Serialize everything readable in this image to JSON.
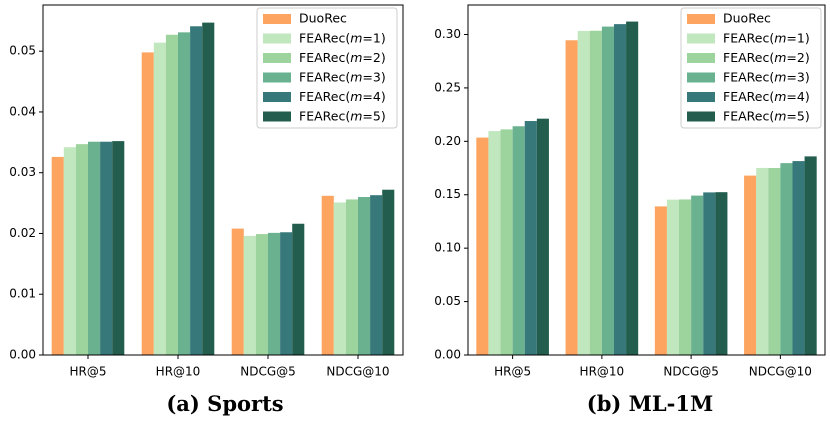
{
  "chart_data": [
    {
      "type": "bar",
      "title": "(a) Sports",
      "xlabel": "",
      "ylabel": "",
      "categories": [
        "HR@5",
        "HR@10",
        "NDCG@5",
        "NDCG@10"
      ],
      "ylim": [
        0,
        0.0576
      ],
      "yticks": [
        "0.00",
        "0.01",
        "0.02",
        "0.03",
        "0.04",
        "0.05"
      ],
      "ytick_values": [
        0,
        0.01,
        0.02,
        0.03,
        0.04,
        0.05
      ],
      "legend_position": "top-right",
      "series": [
        {
          "name": "DuoRec",
          "color": "#fca460",
          "values": [
            0.0326,
            0.0498,
            0.0208,
            0.0262
          ]
        },
        {
          "name": "FEARec(m=1)",
          "color": "#c0e7be",
          "values": [
            0.0342,
            0.0514,
            0.0196,
            0.0251
          ]
        },
        {
          "name": "FEARec(m=2)",
          "color": "#9dd39c",
          "values": [
            0.0347,
            0.0527,
            0.0199,
            0.0256
          ]
        },
        {
          "name": "FEARec(m=3)",
          "color": "#6ab190",
          "values": [
            0.0351,
            0.0531,
            0.0201,
            0.026
          ]
        },
        {
          "name": "FEARec(m=4)",
          "color": "#37797a",
          "values": [
            0.0351,
            0.0541,
            0.0202,
            0.0263
          ]
        },
        {
          "name": "FEARec(m=5)",
          "color": "#225d4e",
          "values": [
            0.0352,
            0.0547,
            0.0216,
            0.0272
          ]
        }
      ]
    },
    {
      "type": "bar",
      "title": "(b) ML-1M",
      "xlabel": "",
      "ylabel": "",
      "categories": [
        "HR@5",
        "HR@10",
        "NDCG@5",
        "NDCG@10"
      ],
      "ylim": [
        0,
        0.3276
      ],
      "yticks": [
        "0.00",
        "0.05",
        "0.10",
        "0.15",
        "0.20",
        "0.25",
        "0.30"
      ],
      "ytick_values": [
        0,
        0.05,
        0.1,
        0.15,
        0.2,
        0.25,
        0.3
      ],
      "legend_position": "top-right",
      "series": [
        {
          "name": "DuoRec",
          "color": "#fca460",
          "values": [
            0.2035,
            0.2946,
            0.1391,
            0.1679
          ]
        },
        {
          "name": "FEARec(m=1)",
          "color": "#c0e7be",
          "values": [
            0.2096,
            0.3033,
            0.1454,
            0.1751
          ]
        },
        {
          "name": "FEARec(m=2)",
          "color": "#9dd39c",
          "values": [
            0.2112,
            0.3035,
            0.1456,
            0.175
          ]
        },
        {
          "name": "FEARec(m=3)",
          "color": "#6ab190",
          "values": [
            0.2141,
            0.3074,
            0.1492,
            0.1796
          ]
        },
        {
          "name": "FEARec(m=4)",
          "color": "#37797a",
          "values": [
            0.219,
            0.3097,
            0.1522,
            0.1815
          ]
        },
        {
          "name": "FEARec(m=5)",
          "color": "#225d4e",
          "values": [
            0.2212,
            0.3121,
            0.1524,
            0.1859
          ]
        }
      ]
    }
  ]
}
